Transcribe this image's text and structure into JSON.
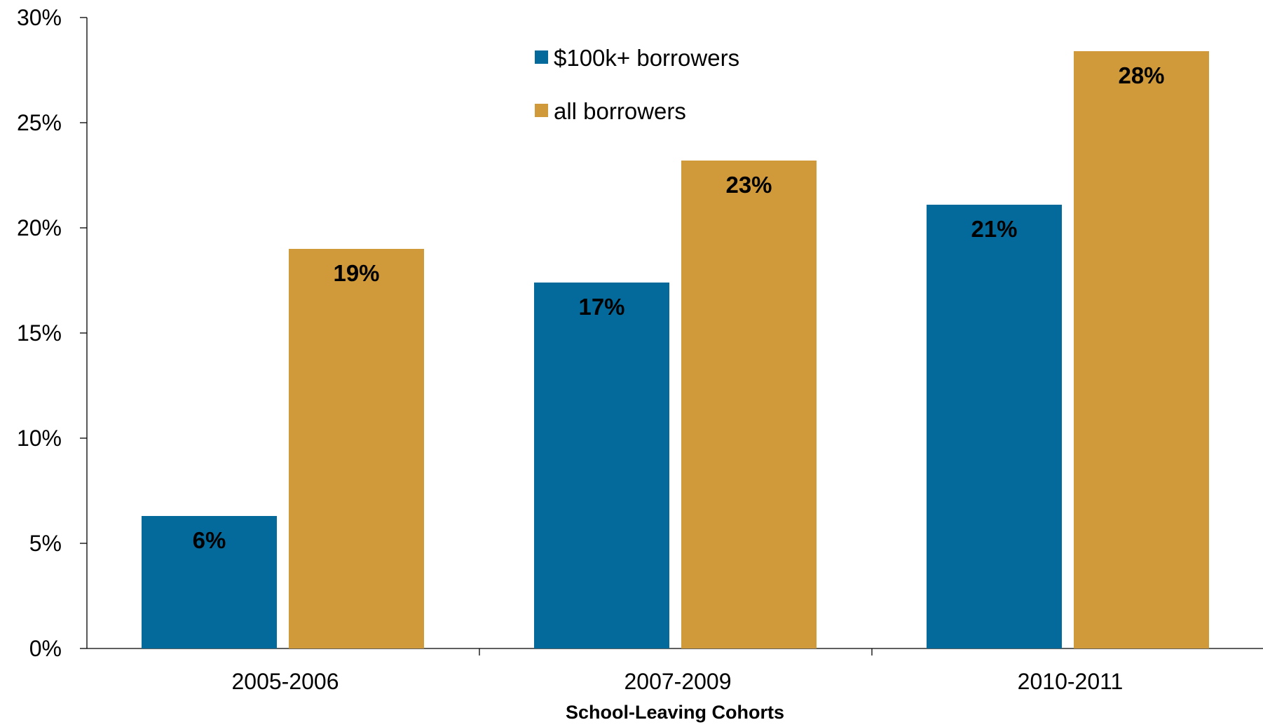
{
  "chart_data": {
    "type": "bar",
    "title": "",
    "xlabel": "School-Leaving Cohorts",
    "ylabel": "",
    "categories": [
      "2005-2006",
      "2007-2009",
      "2010-2011"
    ],
    "series": [
      {
        "name": "$100k+ borrowers",
        "values": [
          6.3,
          17.4,
          21.1
        ],
        "labels": [
          "6%",
          "17%",
          "21%"
        ],
        "color": "#046a9b"
      },
      {
        "name": "all borrowers",
        "values": [
          19.0,
          23.2,
          28.4
        ],
        "labels": [
          "19%",
          "23%",
          "28%"
        ],
        "color": "#d09a3b"
      }
    ],
    "ylim": [
      0,
      30
    ],
    "yticks": [
      0,
      5,
      10,
      15,
      20,
      25,
      30
    ],
    "ytick_labels": [
      "0%",
      "5%",
      "10%",
      "15%",
      "20%",
      "25%",
      "30%"
    ],
    "grid": false,
    "legend_position": "top-center"
  }
}
